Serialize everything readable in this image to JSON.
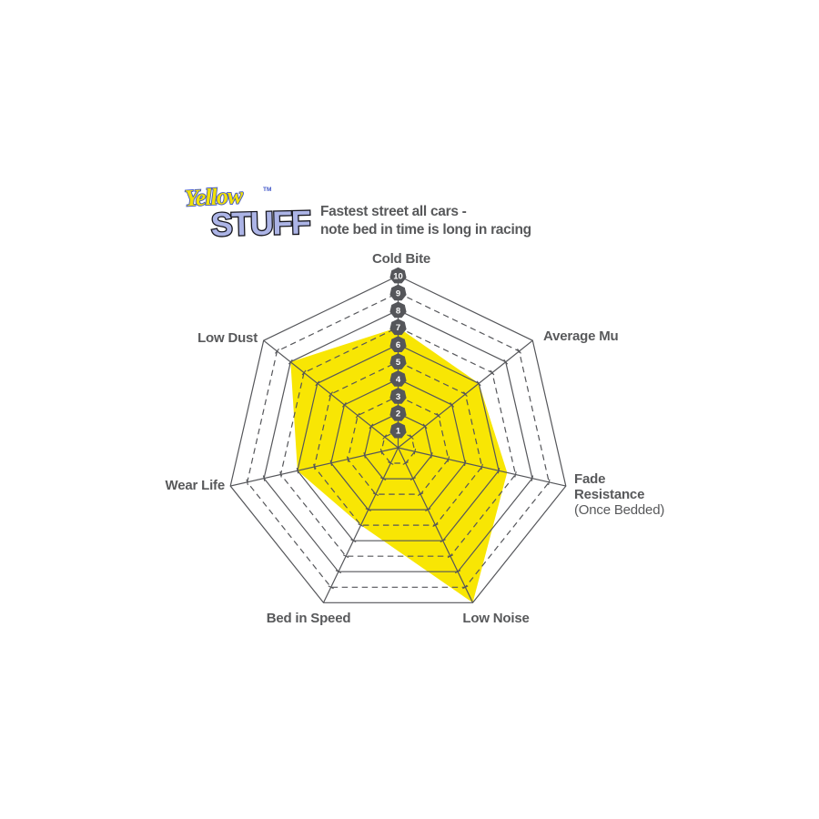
{
  "logo": {
    "word1": "Yellow",
    "tm": "TM",
    "word2": "STUFF",
    "word1_color": "#F1E005",
    "word1_outline": "#4056C8",
    "word2_color": "#ACB4E6",
    "word2_outline": "#17171F"
  },
  "header": {
    "line1": "Fastest street all cars -",
    "line2": "note bed in time is long in racing",
    "color": "#58595B"
  },
  "labels": {
    "cold_bite": "Cold Bite",
    "average_mu": "Average Mu",
    "fade_line1": "Fade",
    "fade_line2": "Resistance",
    "fade_line3": "(Once Bedded)",
    "low_noise": "Low Noise",
    "bed_in_speed": "Bed in Speed",
    "wear_life": "Wear Life",
    "low_dust": "Low Dust"
  },
  "chart_data": {
    "type": "radar",
    "categories": [
      "Cold Bite",
      "Average Mu",
      "Fade Resistance (Once Bedded)",
      "Low Noise",
      "Bed in Speed",
      "Wear Life",
      "Low Dust"
    ],
    "values": [
      7,
      6,
      6.5,
      10,
      5,
      6,
      8
    ],
    "scale": {
      "min": 1,
      "max": 10,
      "ring_count": 10
    },
    "scale_tick_labels": [
      "1",
      "2",
      "3",
      "4",
      "5",
      "6",
      "7",
      "8",
      "9",
      "10"
    ],
    "grid": "concentric heptagons, even rings solid, odd rings dashed",
    "legend_position": "none",
    "fill_color": "#F8E604",
    "grid_color": "#55565A",
    "badge_color": "#55565A",
    "badge_text_color": "#FFFFFF",
    "label_color": "#58595B"
  }
}
